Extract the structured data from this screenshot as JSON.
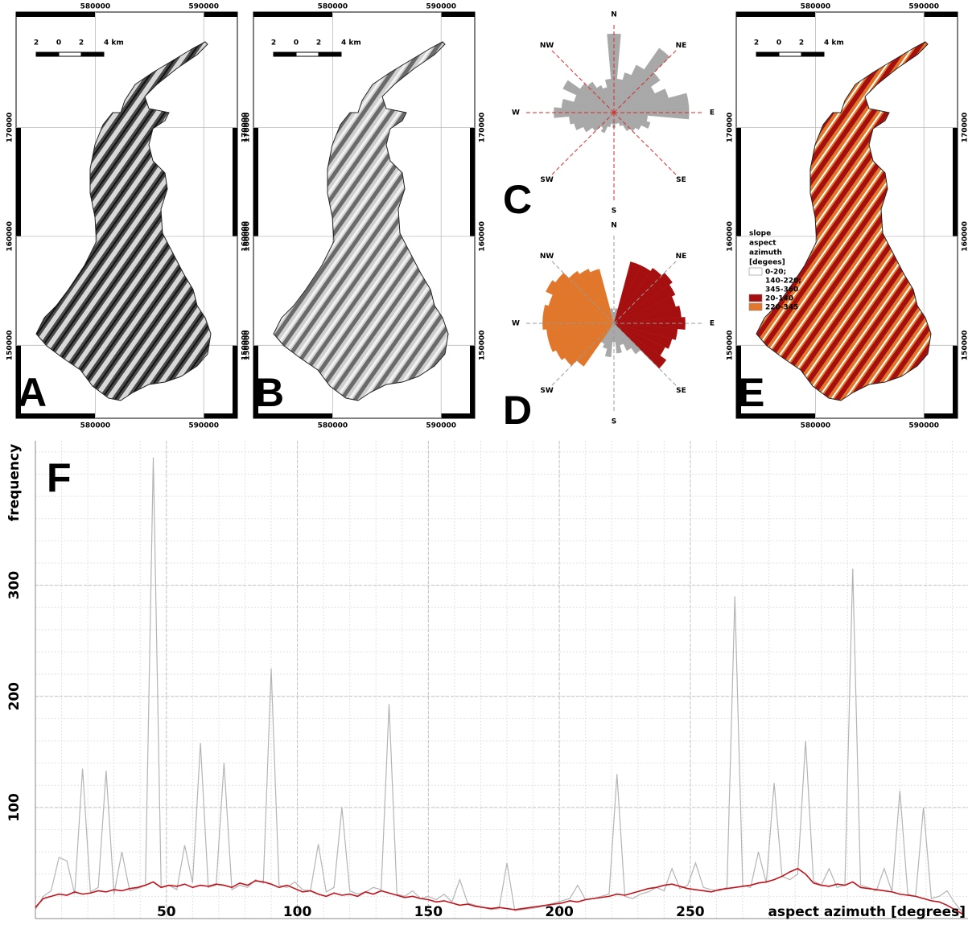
{
  "maps": {
    "panels": [
      {
        "letter": "A"
      },
      {
        "letter": "B"
      },
      {
        "letter": "E"
      }
    ],
    "xlim": [
      572700,
      593100
    ],
    "ylim": [
      143300,
      180600
    ],
    "xticks": [
      580000,
      590000
    ],
    "yticks": [
      150000,
      160000,
      170000
    ],
    "scale_bar_labels": [
      "2",
      "0",
      "2",
      "4 km"
    ],
    "legend": {
      "title_lines": [
        "slope",
        "aspect",
        "azimuth",
        "[degees]"
      ],
      "entries": [
        {
          "lines": [
            "0-20;",
            "140-220;",
            "345-360"
          ],
          "color": "#ffffff"
        },
        {
          "lines": [
            "20-140"
          ],
          "color": "#a50f0f"
        },
        {
          "lines": [
            "220-345"
          ],
          "color": "#e0772a"
        }
      ]
    }
  },
  "chart_data": [
    {
      "type": "rose",
      "letter": "C",
      "direction_labels": [
        "N",
        "NE",
        "E",
        "SE",
        "S",
        "SW",
        "W",
        "NW"
      ],
      "theta": [
        0,
        10,
        20,
        30,
        40,
        50,
        60,
        70,
        80,
        90,
        100,
        110,
        120,
        130,
        140,
        150,
        160,
        170,
        180,
        190,
        200,
        210,
        220,
        230,
        240,
        250,
        260,
        270,
        280,
        290,
        300,
        310,
        320,
        330,
        340,
        350
      ],
      "values": [
        105,
        45,
        55,
        70,
        105,
        75,
        60,
        75,
        100,
        100,
        45,
        50,
        40,
        35,
        30,
        20,
        15,
        15,
        20,
        15,
        20,
        30,
        25,
        35,
        45,
        55,
        60,
        80,
        70,
        55,
        75,
        55,
        50,
        40,
        35,
        45
      ],
      "color": "#a8a8a8",
      "axis_color": "#d62a2a",
      "rlim": [
        0,
        120
      ]
    },
    {
      "type": "rose",
      "letter": "D",
      "direction_labels": [
        "N",
        "NE",
        "E",
        "SE",
        "S",
        "SW",
        "W",
        "NW"
      ],
      "theta": [
        0,
        10,
        20,
        30,
        40,
        50,
        60,
        70,
        80,
        90,
        100,
        110,
        120,
        130,
        140,
        150,
        160,
        170,
        180,
        190,
        200,
        210,
        220,
        230,
        240,
        250,
        260,
        270,
        280,
        290,
        300,
        310,
        320,
        330,
        340,
        350
      ],
      "values": [
        15,
        20,
        85,
        85,
        90,
        95,
        90,
        85,
        90,
        95,
        85,
        80,
        75,
        85,
        50,
        40,
        30,
        40,
        25,
        45,
        35,
        30,
        70,
        80,
        85,
        90,
        90,
        95,
        95,
        90,
        100,
        95,
        85,
        80,
        75,
        20
      ],
      "colors": [
        "#a8a8a8",
        "#a8a8a8",
        "#a50f0f",
        "#a50f0f",
        "#a50f0f",
        "#a50f0f",
        "#a50f0f",
        "#a50f0f",
        "#a50f0f",
        "#a50f0f",
        "#a50f0f",
        "#a50f0f",
        "#a50f0f",
        "#a50f0f",
        "#a8a8a8",
        "#a8a8a8",
        "#a8a8a8",
        "#a8a8a8",
        "#a8a8a8",
        "#a8a8a8",
        "#a8a8a8",
        "#a8a8a8",
        "#e0772a",
        "#e0772a",
        "#e0772a",
        "#e0772a",
        "#e0772a",
        "#e0772a",
        "#e0772a",
        "#e0772a",
        "#e0772a",
        "#e0772a",
        "#e0772a",
        "#e0772a",
        "#e0772a",
        "#a8a8a8"
      ],
      "axis_color": "#999999",
      "rlim": [
        0,
        120
      ]
    },
    {
      "type": "line",
      "letter": "F",
      "xlabel": "aspect azimuth [degrees]",
      "ylabel": "frequency",
      "xlim": [
        0,
        356
      ],
      "ylim": [
        0,
        430
      ],
      "xticks": [
        50,
        100,
        150,
        200,
        250
      ],
      "yticks": [
        100,
        200,
        300
      ],
      "xminorticks": [
        10,
        20,
        30,
        40,
        50,
        60,
        70,
        80,
        90,
        100,
        110,
        120,
        130,
        140,
        150,
        160,
        170,
        180,
        190,
        200,
        210,
        220,
        230,
        240,
        250,
        260,
        270,
        280,
        290,
        300,
        310,
        320,
        330,
        340,
        350
      ],
      "yminorticks": [
        20,
        40,
        60,
        80,
        100,
        120,
        140,
        160,
        180,
        200,
        220,
        240,
        260,
        280,
        300,
        320,
        340,
        360,
        380,
        400,
        420
      ],
      "grid": true,
      "x": [
        0,
        3,
        6,
        9,
        12,
        15,
        18,
        21,
        24,
        27,
        30,
        33,
        36,
        39,
        42,
        45,
        48,
        51,
        54,
        57,
        60,
        63,
        66,
        69,
        72,
        75,
        78,
        81,
        84,
        87,
        90,
        93,
        96,
        99,
        102,
        105,
        108,
        111,
        114,
        117,
        120,
        123,
        126,
        129,
        132,
        135,
        138,
        141,
        144,
        147,
        150,
        153,
        156,
        159,
        162,
        165,
        168,
        171,
        174,
        177,
        180,
        183,
        186,
        189,
        192,
        195,
        198,
        201,
        204,
        207,
        210,
        213,
        216,
        219,
        222,
        225,
        228,
        231,
        234,
        237,
        240,
        243,
        246,
        249,
        252,
        255,
        258,
        261,
        264,
        267,
        270,
        273,
        276,
        279,
        282,
        285,
        288,
        291,
        294,
        297,
        300,
        303,
        306,
        309,
        312,
        315,
        318,
        321,
        324,
        327,
        330,
        333,
        336,
        339,
        342,
        345,
        348,
        351,
        354
      ],
      "series": [
        {
          "color": "#b4b4b4",
          "values": [
            8,
            20,
            25,
            55,
            52,
            22,
            135,
            24,
            28,
            133,
            22,
            60,
            25,
            27,
            30,
            415,
            28,
            30,
            26,
            66,
            32,
            158,
            28,
            30,
            140,
            26,
            30,
            28,
            35,
            32,
            225,
            30,
            28,
            33,
            26,
            25,
            67,
            24,
            28,
            100,
            25,
            22,
            24,
            28,
            26,
            193,
            22,
            20,
            25,
            18,
            20,
            17,
            22,
            15,
            35,
            14,
            12,
            10,
            8,
            9,
            50,
            7,
            8,
            9,
            10,
            12,
            14,
            16,
            18,
            30,
            17,
            18,
            20,
            22,
            130,
            20,
            18,
            22,
            24,
            28,
            25,
            45,
            27,
            30,
            50,
            28,
            26,
            25,
            28,
            290,
            30,
            28,
            60,
            32,
            122,
            38,
            35,
            40,
            160,
            34,
            30,
            45,
            28,
            30,
            315,
            30,
            28,
            25,
            45,
            24,
            115,
            22,
            20,
            100,
            18,
            20,
            25,
            14,
            5
          ]
        },
        {
          "color": "#c0141c",
          "values": [
            10,
            18,
            20,
            22,
            21,
            24,
            22,
            23,
            25,
            24,
            26,
            25,
            27,
            28,
            30,
            33,
            28,
            30,
            29,
            31,
            28,
            30,
            29,
            31,
            30,
            28,
            32,
            30,
            34,
            33,
            31,
            28,
            30,
            27,
            24,
            25,
            22,
            20,
            23,
            21,
            22,
            20,
            24,
            22,
            25,
            23,
            21,
            19,
            20,
            18,
            17,
            15,
            16,
            14,
            12,
            13,
            11,
            10,
            9,
            10,
            9,
            8,
            9,
            10,
            11,
            12,
            13,
            14,
            16,
            15,
            17,
            18,
            19,
            20,
            22,
            21,
            23,
            25,
            27,
            28,
            30,
            31,
            29,
            27,
            26,
            25,
            24,
            26,
            27,
            28,
            29,
            30,
            32,
            33,
            35,
            38,
            42,
            45,
            40,
            32,
            30,
            29,
            31,
            30,
            33,
            28,
            27,
            26,
            25,
            24,
            22,
            21,
            20,
            18,
            16,
            15,
            12,
            8,
            4
          ]
        }
      ]
    }
  ]
}
